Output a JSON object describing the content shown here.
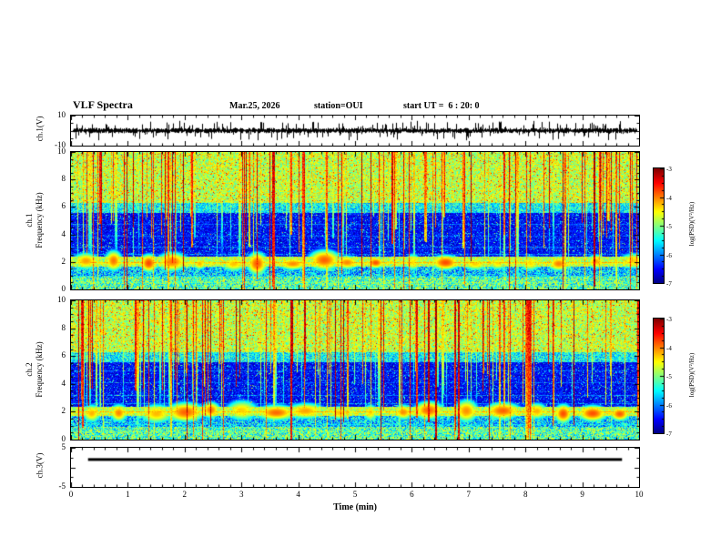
{
  "header": {
    "title": "VLF Spectra",
    "date": "Mar.25, 2026",
    "station": "station=OUI",
    "start_ut": "start UT =  6 : 20: 0"
  },
  "xaxis": {
    "label": "Time (min)",
    "ticks": [
      "0",
      "1",
      "2",
      "3",
      "4",
      "5",
      "6",
      "7",
      "8",
      "9",
      "10"
    ]
  },
  "colorbar": {
    "label": "log(PSD)(V²/Hz)",
    "ticks": [
      "-3",
      "-4",
      "-5",
      "-6",
      "-7"
    ]
  },
  "panels": {
    "wave": {
      "ylabel": "ch.1(V)",
      "yticks": [
        "10",
        "-10"
      ]
    },
    "spec1": {
      "ylabel_line1": "ch.1",
      "ylabel_line2": "Frequency (kHz)",
      "yticks": [
        "10",
        "8",
        "6",
        "4",
        "2",
        "0"
      ]
    },
    "spec2": {
      "ylabel_line1": "ch.2",
      "ylabel_line2": "Frequency (kHz)",
      "yticks": [
        "10",
        "8",
        "6",
        "4",
        "2",
        "0"
      ]
    },
    "ch3": {
      "ylabel": "ch.3(V)",
      "yticks": [
        "5",
        "-5"
      ]
    }
  },
  "chart_data": [
    {
      "type": "line",
      "name": "ch.1 time series",
      "xlabel": "Time (min)",
      "xlim": [
        0,
        10
      ],
      "ylabel": "ch.1(V)",
      "ylim": [
        -10,
        10
      ],
      "description": "Dense black broadband noise trace centered on 0 V with envelope about ±1.5 V and frequent impulsive spikes reaching about ±7 V over the full 0-10 min record",
      "render": {
        "seed": 7,
        "noise_v": 1.4,
        "spike_prob": 0.3,
        "spike_vmax": 6.5
      }
    },
    {
      "type": "heatmap",
      "name": "ch.1 spectrogram",
      "xlabel": "Time (min)",
      "xlim": [
        0,
        10
      ],
      "ylabel": "Frequency (kHz)",
      "ylim": [
        0,
        10
      ],
      "zlabel": "log(PSD)(V²/Hz)",
      "zlim": [
        -7,
        -3
      ],
      "features": [
        "Bright green/yellow noisy region above ~6 kHz",
        "Dark blue/black low-power region between ~2.5 and 6 kHz with faint horizontal blue lines and sparse speckle",
        "Bright emission band near 2 kHz with periodic green/yellow blobs roughly every 0.5 min",
        "Mixed blue/green mottled noise below ~1.7 kHz",
        "Many impulsive vertical streaks (sferics) of yellow/red/green extending down from the top at random times"
      ],
      "render": {
        "seed": 101,
        "streaks": 155,
        "band_f": 2.0,
        "blob_rx": 8,
        "blob_gap": 24,
        "blob_gap_var": 18,
        "hlines": [
          {
            "f": 4.8,
            "v": -6.1
          },
          {
            "f": 3.9,
            "v": -6.15
          },
          {
            "f": 3.1,
            "v": -6.05
          },
          {
            "f": 2.6,
            "v": -5.95
          },
          {
            "f": 1.0,
            "v": -5.7
          },
          {
            "f": 0.55,
            "v": -5.2
          }
        ]
      }
    },
    {
      "type": "heatmap",
      "name": "ch.2 spectrogram",
      "xlabel": "Time (min)",
      "xlim": [
        0,
        10
      ],
      "ylabel": "Frequency (kHz)",
      "ylim": [
        0,
        10
      ],
      "zlabel": "log(PSD)(V²/Hz)",
      "zlim": [
        -7,
        -3
      ],
      "features": [
        "Bright green/yellow noisy region above ~6 kHz",
        "Dark blue/black low-power region between ~2.5 and 6 kHz with faint horizontal blue lines",
        "Bright emission band near 2 kHz with larger elongated green/yellow blobs about every 0.5 min",
        "Mixed blue/green mottled noise below ~1.7 kHz",
        "Many impulsive vertical streaks (sferics) at random times, some spanning the full band"
      ],
      "render": {
        "seed": 202,
        "streaks": 150,
        "band_f": 2.0,
        "blob_rx": 12,
        "blob_gap": 26,
        "blob_gap_var": 16,
        "hlines": [
          {
            "f": 5.0,
            "v": -6.1
          },
          {
            "f": 4.1,
            "v": -6.1
          },
          {
            "f": 3.2,
            "v": -6.0
          },
          {
            "f": 2.6,
            "v": -5.95
          },
          {
            "f": 1.1,
            "v": -5.7
          },
          {
            "f": 0.6,
            "v": -5.25
          }
        ]
      }
    },
    {
      "type": "line",
      "name": "ch.3 level",
      "xlabel": "Time (min)",
      "xlim": [
        0,
        10
      ],
      "ylabel": "ch.3(V)",
      "ylim": [
        -5,
        5
      ],
      "points": [
        [
          0.3,
          2
        ],
        [
          9.7,
          2
        ]
      ],
      "description": "Thick constant black trace at about +2 V from ~0.3 to ~9.7 min"
    }
  ]
}
